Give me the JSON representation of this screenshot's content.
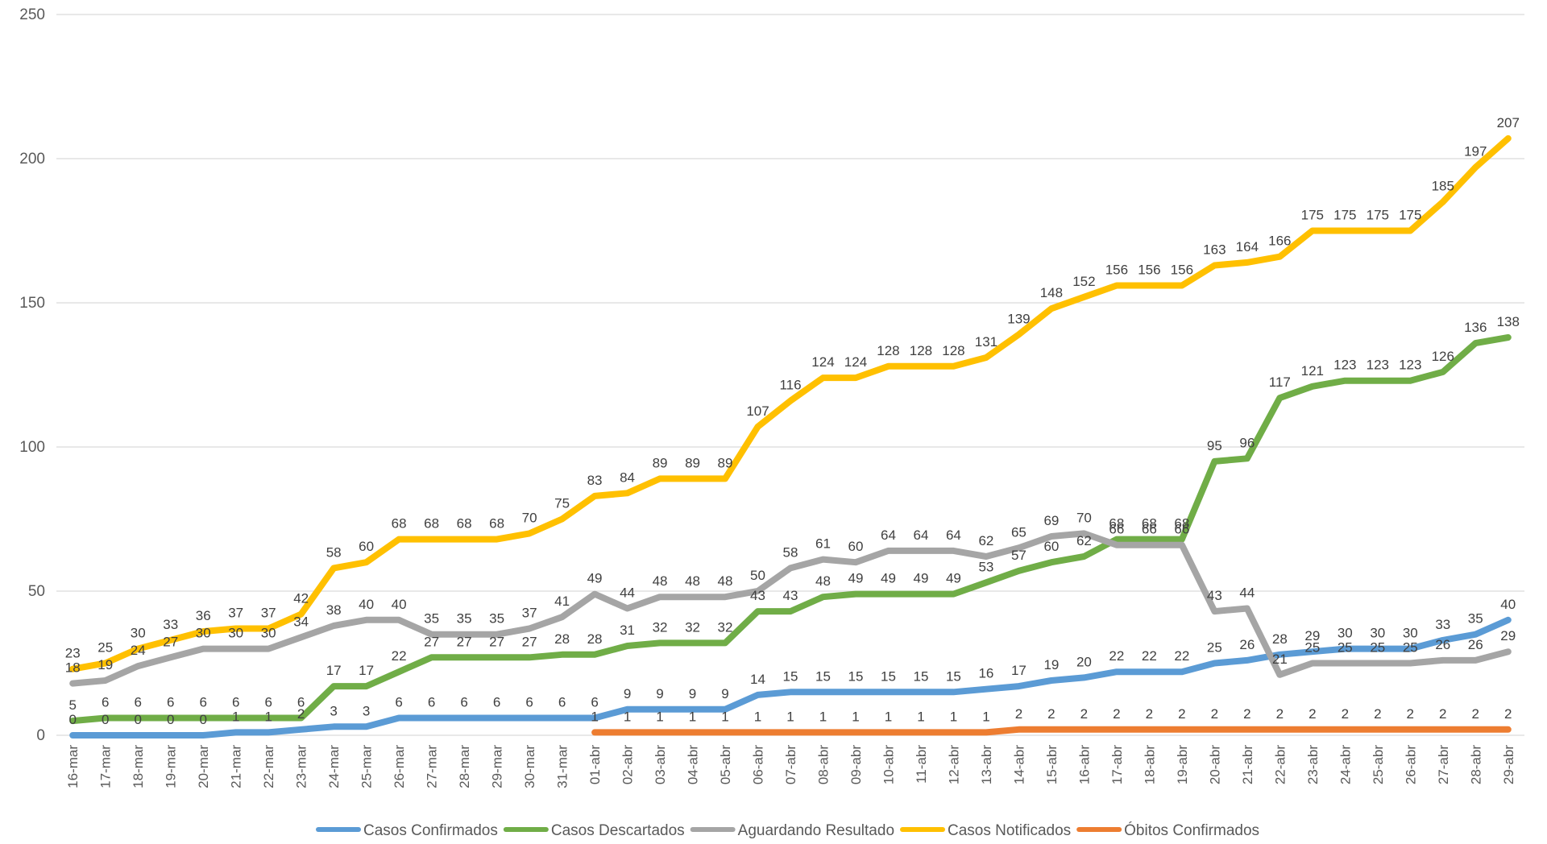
{
  "chart_data": {
    "type": "line",
    "title": "",
    "xlabel": "",
    "ylabel": "",
    "ylim": [
      0,
      250
    ],
    "yticks": [
      0,
      50,
      100,
      150,
      200,
      250
    ],
    "grid": "horizontal",
    "legend_position": "bottom",
    "categories": [
      "16-mar",
      "17-mar",
      "18-mar",
      "19-mar",
      "20-mar",
      "21-mar",
      "22-mar",
      "23-mar",
      "24-mar",
      "25-mar",
      "26-mar",
      "27-mar",
      "28-mar",
      "29-mar",
      "30-mar",
      "31-mar",
      "01-abr",
      "02-abr",
      "03-abr",
      "04-abr",
      "05-abr",
      "06-abr",
      "07-abr",
      "08-abr",
      "09-abr",
      "10-abr",
      "11-abr",
      "12-abr",
      "13-abr",
      "14-abr",
      "15-abr",
      "16-abr",
      "17-abr",
      "18-abr",
      "19-abr",
      "20-abr",
      "21-abr",
      "22-abr",
      "23-abr",
      "24-abr",
      "25-abr",
      "26-abr",
      "27-abr",
      "28-abr",
      "29-abr"
    ],
    "series": [
      {
        "name": "Casos Confirmados",
        "color": "#5b9bd5",
        "label_pos": "above",
        "label_color": "#262626",
        "values": [
          0,
          0,
          0,
          0,
          0,
          1,
          1,
          2,
          3,
          3,
          6,
          6,
          6,
          6,
          6,
          6,
          6,
          9,
          9,
          9,
          9,
          14,
          15,
          15,
          15,
          15,
          15,
          15,
          16,
          17,
          19,
          20,
          22,
          22,
          22,
          25,
          26,
          28,
          29,
          30,
          30,
          30,
          33,
          35,
          40
        ]
      },
      {
        "name": "Casos Descartados",
        "color": "#70ad47",
        "label_pos": "above",
        "label_color": "#404040",
        "values": [
          5,
          6,
          6,
          6,
          6,
          6,
          6,
          6,
          17,
          17,
          22,
          27,
          27,
          27,
          27,
          28,
          28,
          31,
          32,
          32,
          32,
          43,
          43,
          48,
          49,
          49,
          49,
          49,
          53,
          57,
          60,
          62,
          68,
          68,
          68,
          95,
          96,
          117,
          121,
          123,
          123,
          123,
          126,
          136,
          138
        ]
      },
      {
        "name": "Aguardando Resultado",
        "color": "#a5a5a5",
        "label_pos": "above",
        "label_color": "#404040",
        "values": [
          18,
          19,
          24,
          27,
          30,
          30,
          30,
          34,
          38,
          40,
          40,
          35,
          35,
          35,
          37,
          41,
          49,
          44,
          48,
          48,
          48,
          50,
          58,
          61,
          60,
          64,
          64,
          64,
          62,
          65,
          69,
          70,
          66,
          66,
          66,
          43,
          44,
          21,
          25,
          25,
          25,
          25,
          26,
          26,
          29
        ]
      },
      {
        "name": "Casos Notificados",
        "color": "#ffc000",
        "label_pos": "above",
        "label_color": "#404040",
        "values": [
          23,
          25,
          30,
          33,
          36,
          37,
          37,
          42,
          58,
          60,
          68,
          68,
          68,
          68,
          70,
          75,
          83,
          84,
          89,
          89,
          89,
          107,
          116,
          124,
          124,
          128,
          128,
          128,
          131,
          139,
          148,
          152,
          156,
          156,
          156,
          163,
          164,
          166,
          175,
          175,
          175,
          175,
          185,
          197,
          207
        ]
      },
      {
        "name": "Óbitos Confirmados",
        "color": "#ed7d31",
        "label_pos": "above",
        "label_color": "#404040",
        "start_index": 16,
        "values": [
          null,
          null,
          null,
          null,
          null,
          null,
          null,
          null,
          null,
          null,
          null,
          null,
          null,
          null,
          null,
          null,
          1,
          1,
          1,
          1,
          1,
          1,
          1,
          1,
          1,
          1,
          1,
          1,
          1,
          2,
          2,
          2,
          2,
          2,
          2,
          2,
          2,
          2,
          2,
          2,
          2,
          2,
          2,
          2,
          2
        ]
      }
    ]
  }
}
